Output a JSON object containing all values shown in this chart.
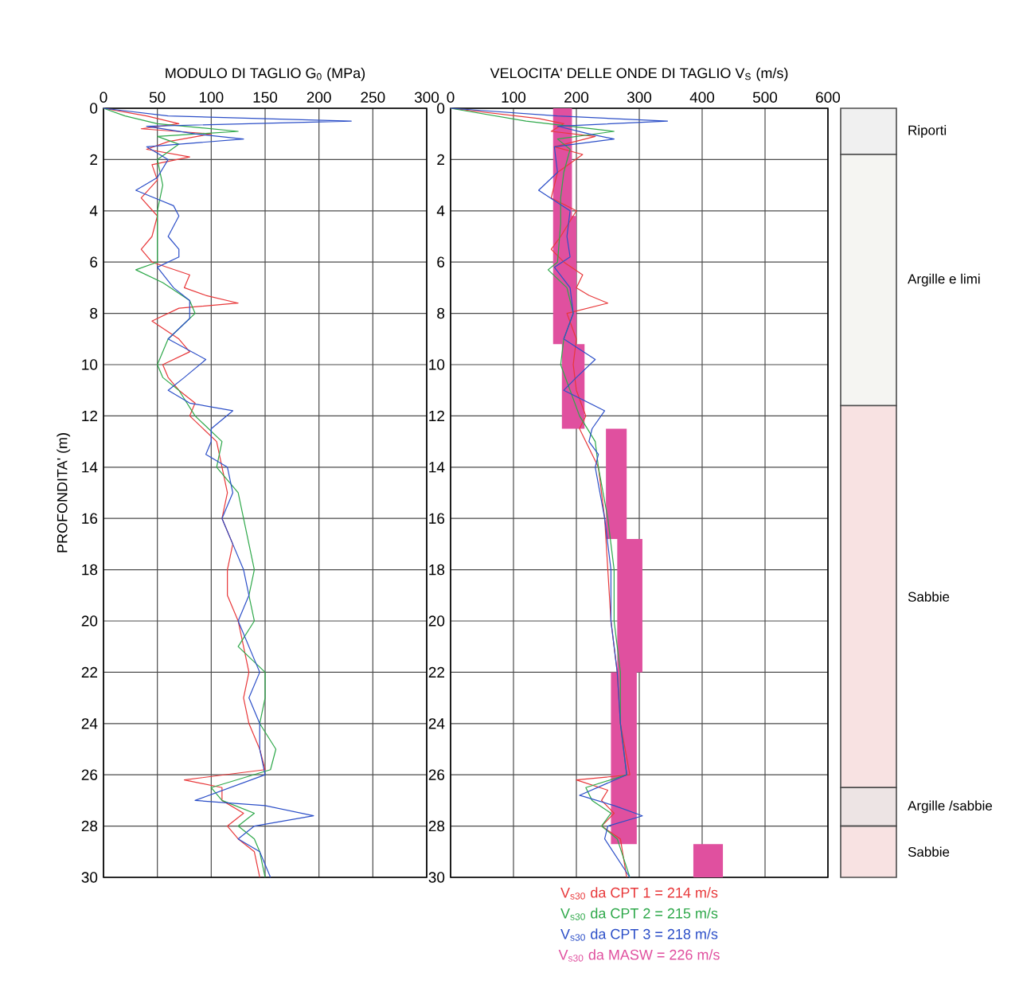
{
  "chart_data": [
    {
      "type": "line",
      "xlabel": "MODULO DI TAGLIO G$_{0}$ (MPa)",
      "ylabel": "PROFONDITA' (m)",
      "xlim": [
        0,
        300
      ],
      "xticks": [
        0,
        50,
        100,
        150,
        200,
        250,
        300
      ],
      "ylim": [
        30,
        0
      ],
      "yticks": [
        0,
        2,
        4,
        6,
        8,
        10,
        12,
        14,
        16,
        18,
        20,
        22,
        24,
        26,
        28,
        30
      ],
      "grid": true,
      "series": [
        {
          "color": "#e8383a",
          "x": [
            0,
            40,
            70,
            35,
            100,
            60,
            40,
            80,
            45,
            50,
            35,
            50,
            45,
            35,
            45,
            80,
            75,
            95,
            125,
            70,
            45,
            70,
            80,
            55,
            60,
            70,
            85,
            80,
            105,
            115,
            110,
            120,
            115,
            115,
            125,
            135,
            130,
            135,
            145,
            150,
            75,
            110,
            110,
            130,
            115,
            125,
            140,
            145
          ],
          "values": [
            0,
            0.3,
            0.6,
            0.8,
            1.0,
            1.3,
            1.6,
            1.9,
            2.2,
            2.8,
            3.5,
            4.2,
            5,
            5.5,
            6,
            6.5,
            7,
            7.3,
            7.6,
            7.8,
            8.3,
            9,
            9.5,
            10,
            10.5,
            11,
            11.5,
            12,
            13,
            15,
            16,
            17,
            18,
            19,
            20,
            22,
            23,
            24,
            25,
            25.8,
            26.2,
            26.5,
            27,
            27.5,
            28,
            28.5,
            29,
            30
          ]
        },
        {
          "color": "#2ea84a",
          "x": [
            0,
            20,
            50,
            125,
            50,
            70,
            50,
            55,
            50,
            50,
            30,
            55,
            80,
            85,
            60,
            50,
            55,
            70,
            85,
            110,
            105,
            125,
            130,
            140,
            135,
            140,
            125,
            150,
            150,
            145,
            160,
            155,
            100,
            110,
            140,
            125,
            140,
            145,
            150
          ],
          "values": [
            0,
            0.3,
            0.6,
            0.9,
            1.1,
            1.4,
            2,
            3,
            4,
            6,
            6.3,
            6.8,
            7.5,
            8,
            9,
            10,
            10.5,
            11,
            12,
            13,
            14,
            15,
            16,
            18,
            19,
            20,
            21,
            22,
            23,
            24,
            25,
            25.8,
            26.5,
            27,
            27.5,
            28,
            28.5,
            29,
            30
          ]
        },
        {
          "color": "#2c4fc8",
          "x": [
            0,
            60,
            230,
            40,
            85,
            130,
            40,
            60,
            50,
            30,
            65,
            70,
            60,
            70,
            70,
            50,
            65,
            80,
            80,
            60,
            95,
            75,
            60,
            80,
            120,
            100,
            100,
            95,
            115,
            120,
            110,
            120,
            130,
            135,
            125,
            145,
            135,
            145,
            145,
            150,
            85,
            150,
            195,
            140,
            125,
            145,
            155
          ],
          "values": [
            0,
            0.3,
            0.5,
            0.7,
            1.0,
            1.2,
            1.5,
            2,
            2.7,
            3.2,
            3.8,
            4.2,
            5,
            5.5,
            5.8,
            6.2,
            7,
            7.5,
            8.2,
            9,
            9.8,
            10.5,
            11,
            11.5,
            11.8,
            12.5,
            13,
            13.5,
            14,
            15,
            16,
            17,
            18,
            19,
            20,
            22,
            23,
            24,
            25,
            26,
            27,
            27.2,
            27.6,
            28,
            28.5,
            29,
            30
          ]
        }
      ]
    },
    {
      "type": "line",
      "xlabel": "VELOCITA' DELLE ONDE DI TAGLIO V$_{S}$ (m/s)",
      "xlim": [
        0,
        600
      ],
      "xticks": [
        0,
        100,
        200,
        300,
        400,
        500,
        600
      ],
      "ylim": [
        30,
        0
      ],
      "yticks": [
        0,
        2,
        4,
        6,
        8,
        10,
        12,
        14,
        16,
        18,
        20,
        22,
        24,
        26,
        28,
        30
      ],
      "grid": true,
      "series": [
        {
          "name": "V$_{s30}$ da CPT 1 = 214 m/s",
          "color": "#e8383a",
          "x": [
            0,
            140,
            180,
            160,
            230,
            165,
            210,
            170,
            160,
            200,
            175,
            160,
            180,
            210,
            200,
            220,
            250,
            185,
            200,
            195,
            200,
            215,
            205,
            235,
            245,
            250,
            255,
            265,
            270,
            285,
            200,
            250,
            240,
            260,
            240,
            270,
            280
          ],
          "values": [
            0,
            0.4,
            0.6,
            0.9,
            1.1,
            1.5,
            1.8,
            2.5,
            3.5,
            4,
            5,
            5.5,
            6,
            6.5,
            7,
            7.3,
            7.6,
            8,
            9,
            10,
            11,
            12,
            12.5,
            14,
            16,
            18,
            20,
            22,
            24,
            26,
            26.2,
            26.6,
            27,
            27.5,
            28,
            28.5,
            30
          ]
        },
        {
          "name": "V$_{s30}$ da CPT 2 = 215 m/s",
          "color": "#2ea84a",
          "x": [
            0,
            120,
            260,
            170,
            190,
            180,
            175,
            175,
            170,
            155,
            185,
            195,
            180,
            175,
            190,
            205,
            230,
            235,
            250,
            260,
            260,
            270,
            270,
            280,
            215,
            225,
            255,
            240,
            265,
            285
          ],
          "values": [
            0,
            0.5,
            0.9,
            1.2,
            1.6,
            2.5,
            3.5,
            4.5,
            6,
            6.3,
            7,
            8,
            9,
            10,
            11,
            12,
            13,
            14,
            16,
            18,
            20,
            22,
            24,
            26,
            26.5,
            27,
            27.5,
            28,
            28.5,
            30
          ]
        },
        {
          "name": "V$_{s30}$ da CPT 3 = 218 m/s",
          "color": "#2c4fc8",
          "x": [
            0,
            170,
            345,
            170,
            220,
            260,
            165,
            170,
            140,
            190,
            185,
            190,
            165,
            190,
            195,
            180,
            230,
            200,
            180,
            245,
            225,
            220,
            235,
            230,
            245,
            255,
            255,
            265,
            270,
            280,
            205,
            260,
            305,
            250,
            245,
            285
          ],
          "values": [
            0,
            0.3,
            0.5,
            0.7,
            1,
            1.2,
            1.5,
            2.5,
            3.2,
            4,
            5,
            5.8,
            6.2,
            7,
            8,
            9,
            9.8,
            10.5,
            11,
            11.8,
            12.5,
            13,
            13.5,
            14,
            16,
            18,
            20,
            22,
            24,
            26,
            26.8,
            27.2,
            27.6,
            28,
            28.5,
            30
          ]
        },
        {
          "name": "V$_{s30}$ da MASW = 226 m/s",
          "type": "area",
          "color": "#e0509f",
          "x": [
            163,
            163,
            177,
            177,
            247,
            247,
            265,
            265,
            255,
            255,
            386,
            386,
            433,
            433,
            296,
            296,
            305,
            305,
            280,
            280,
            213,
            213,
            200,
            200,
            193,
            193
          ],
          "values": [
            0,
            9.2,
            9.2,
            12.5,
            12.5,
            16.8,
            16.8,
            22,
            22,
            28.7,
            28.7,
            30,
            30,
            28.7,
            28.7,
            22,
            22,
            16.8,
            16.8,
            12.5,
            12.5,
            9.2,
            9.2,
            4.2,
            4.2,
            0
          ]
        }
      ]
    },
    {
      "type": "bar",
      "stacked": true,
      "categories": [
        null
      ],
      "ylim": [
        30,
        0
      ],
      "tick_labels": false,
      "series": [
        {
          "name": "Riporti",
          "color": "#f0f0f0",
          "values": [
            1.8
          ]
        },
        {
          "name": "Argille e limi",
          "color": "#f5f5f2",
          "values": [
            9.8
          ]
        },
        {
          "name": "Sabbie",
          "color": "#f8e2e2",
          "values": [
            14.9
          ]
        },
        {
          "name": "Argille /sabbie",
          "color": "#ede4e4",
          "values": [
            1.5
          ]
        },
        {
          "name": "Sabbie",
          "color": "#f8e2e2",
          "values": [
            2.0
          ]
        }
      ]
    }
  ]
}
